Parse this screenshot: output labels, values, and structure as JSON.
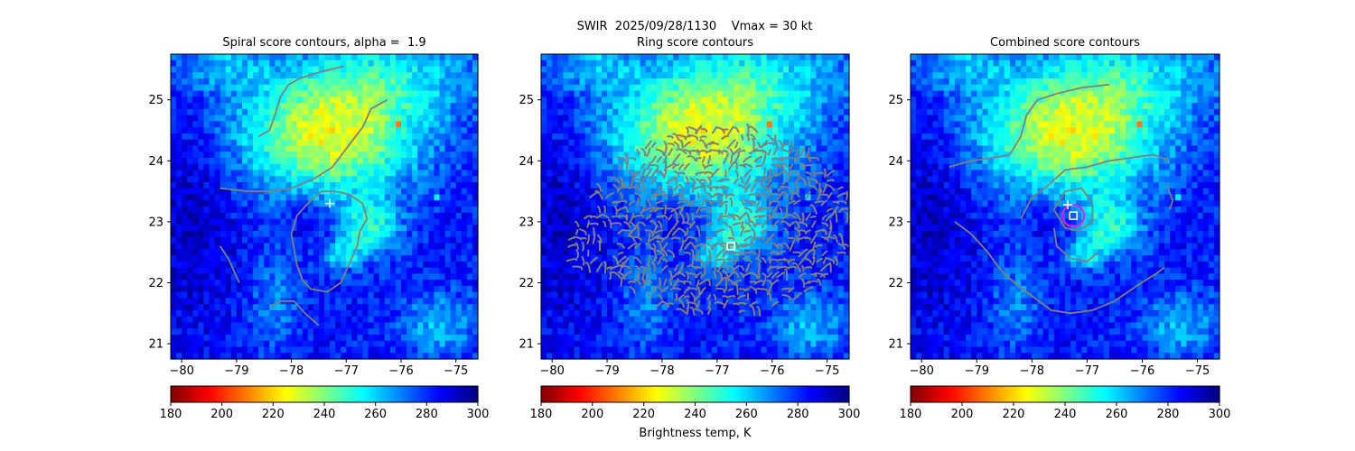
{
  "figure": {
    "suptitle": "SWIR  2025/09/28/1130    Vmax = 30 kt",
    "colorbar_label": "Brightness temp, K"
  },
  "chart_data": [
    {
      "type": "heatmap",
      "title": "Spiral score contours, alpha =  1.9",
      "xlim": [
        -80.2,
        -74.6
      ],
      "ylim": [
        20.75,
        25.75
      ],
      "xticks": [
        -80,
        -79,
        -78,
        -77,
        -76,
        -75
      ],
      "xtick_labels": [
        "−80",
        "−79",
        "−78",
        "−77",
        "−76",
        "−75"
      ],
      "yticks": [
        21,
        22,
        23,
        24,
        25
      ],
      "ytick_labels": [
        "21",
        "22",
        "23",
        "24",
        "25"
      ],
      "colorbar": {
        "min": 180,
        "max": 300,
        "ticks": [
          180,
          200,
          220,
          240,
          260,
          280,
          300
        ],
        "colormap": "jet_r",
        "orientation": "horizontal"
      },
      "contour_color": "#808080",
      "markers": [
        {
          "symbol": "plus",
          "lon": -77.3,
          "lat": 23.3,
          "color": "#ffffff"
        }
      ]
    },
    {
      "type": "heatmap",
      "title": "Ring score contours",
      "xlim": [
        -80.2,
        -74.6
      ],
      "ylim": [
        20.75,
        25.75
      ],
      "xticks": [
        -80,
        -79,
        -78,
        -77,
        -76,
        -75
      ],
      "xtick_labels": [
        "−80",
        "−79",
        "−78",
        "−77",
        "−76",
        "−75"
      ],
      "yticks": [
        21,
        22,
        23,
        24,
        25
      ],
      "ytick_labels": [
        "21",
        "22",
        "23",
        "24",
        "25"
      ],
      "colorbar": {
        "min": 180,
        "max": 300,
        "ticks": [
          180,
          200,
          220,
          240,
          260,
          280,
          300
        ],
        "colormap": "jet_r",
        "orientation": "horizontal"
      },
      "contour_color": "#808080",
      "markers": [
        {
          "symbol": "square",
          "lon": -76.75,
          "lat": 22.6,
          "color": "#ffffff"
        }
      ]
    },
    {
      "type": "heatmap",
      "title": "Combined score contours",
      "xlim": [
        -80.2,
        -74.6
      ],
      "ylim": [
        20.75,
        25.75
      ],
      "xticks": [
        -80,
        -79,
        -78,
        -77,
        -76,
        -75
      ],
      "xtick_labels": [
        "−80",
        "−79",
        "−78",
        "−77",
        "−76",
        "−75"
      ],
      "yticks": [
        21,
        22,
        23,
        24,
        25
      ],
      "ytick_labels": [
        "21",
        "22",
        "23",
        "24",
        "25"
      ],
      "colorbar": {
        "min": 180,
        "max": 300,
        "ticks": [
          180,
          200,
          220,
          240,
          260,
          280,
          300
        ],
        "colormap": "jet_r",
        "orientation": "horizontal"
      },
      "contour_color": "#808080",
      "markers": [
        {
          "symbol": "square",
          "lon": -77.25,
          "lat": 23.1,
          "color": "#ffffff"
        },
        {
          "symbol": "circle",
          "lon": -77.25,
          "lat": 23.1,
          "color": "#e020e0"
        },
        {
          "symbol": "plus",
          "lon": -77.35,
          "lat": 23.28,
          "color": "#ffffff"
        }
      ]
    }
  ]
}
